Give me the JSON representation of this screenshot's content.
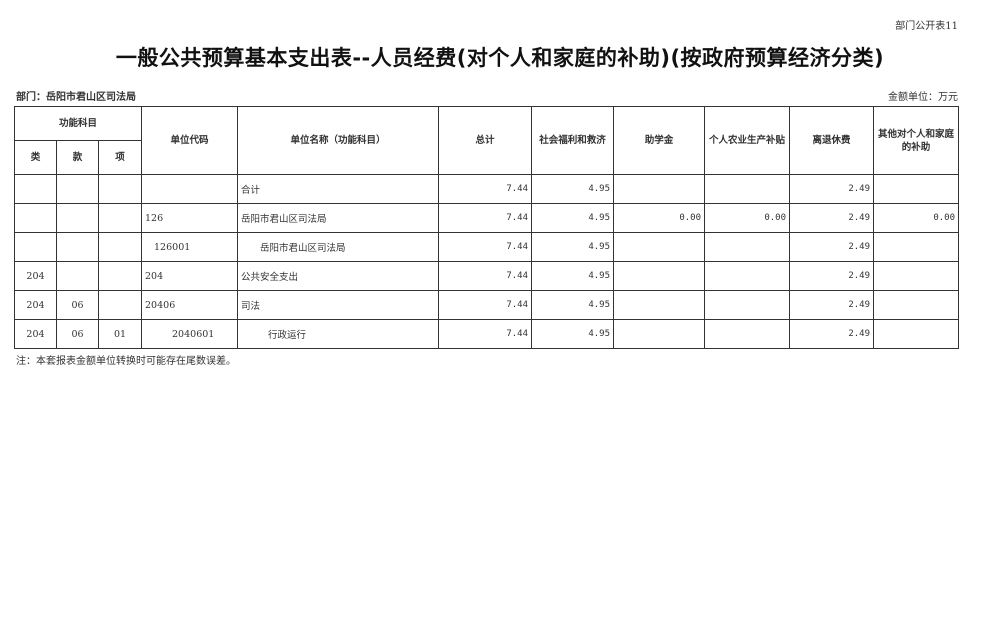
{
  "corner_label": "部门公开表11",
  "title": "一般公共预算基本支出表--人员经费(对个人和家庭的补助)(按政府预算经济分类)",
  "department": "部门：岳阳市君山区司法局",
  "unit": "金额单位：万元",
  "headers": {
    "group": "功能科目",
    "lei": "类",
    "kuan": "款",
    "xiang": "项",
    "code": "单位代码",
    "name": "单位名称（功能科目）",
    "total": "总计",
    "c1": "社会福利和救济",
    "c2": "助学金",
    "c3": "个人农业生产补贴",
    "c4": "离退休费",
    "c5": "其他对个人和家庭的补助"
  },
  "rows": [
    {
      "lei": "",
      "kuan": "",
      "xiang": "",
      "code": "",
      "name": "合计",
      "total": "7.44",
      "c1": "4.95",
      "c2": "",
      "c3": "",
      "c4": "2.49",
      "c5": ""
    },
    {
      "lei": "",
      "kuan": "",
      "xiang": "",
      "code": "126",
      "name": "岳阳市君山区司法局",
      "total": "7.44",
      "c1": "4.95",
      "c2": "0.00",
      "c3": "0.00",
      "c4": "2.49",
      "c5": "0.00"
    },
    {
      "lei": "",
      "kuan": "",
      "xiang": "",
      "code": "126001",
      "name": "岳阳市君山区司法局",
      "total": "7.44",
      "c1": "4.95",
      "c2": "",
      "c3": "",
      "c4": "2.49",
      "c5": ""
    },
    {
      "lei": "204",
      "kuan": "",
      "xiang": "",
      "code": "204",
      "name": "公共安全支出",
      "total": "7.44",
      "c1": "4.95",
      "c2": "",
      "c3": "",
      "c4": "2.49",
      "c5": ""
    },
    {
      "lei": "204",
      "kuan": "06",
      "xiang": "",
      "code": "20406",
      "name": "司法",
      "total": "7.44",
      "c1": "4.95",
      "c2": "",
      "c3": "",
      "c4": "2.49",
      "c5": ""
    },
    {
      "lei": "204",
      "kuan": "06",
      "xiang": "01",
      "code": "2040601",
      "name": "行政运行",
      "total": "7.44",
      "c1": "4.95",
      "c2": "",
      "c3": "",
      "c4": "2.49",
      "c5": ""
    }
  ],
  "note": "注：本套报表金额单位转换时可能存在尾数误差。"
}
